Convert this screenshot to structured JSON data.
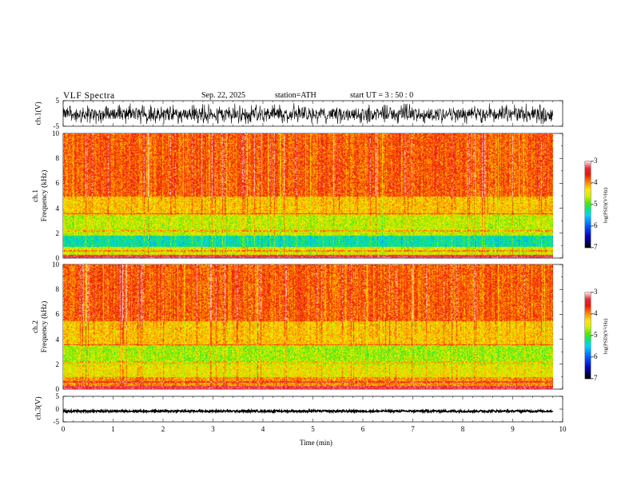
{
  "header": {
    "title": "VLF  Spectra",
    "date": "Sep. 22, 2025",
    "station": "station=ATH",
    "start": "start  UT  =    3  : 50 : 0"
  },
  "chart_data": [
    {
      "type": "line",
      "name": "ch.1 waveform",
      "ylabel": "ch.1(V)",
      "ylim": [
        -5,
        5
      ],
      "yticks": [
        "5",
        "-5"
      ],
      "xlim": [
        0,
        10
      ],
      "data_extent_min": 9.8,
      "amplitude_range": [
        -3,
        2.5
      ]
    },
    {
      "type": "heatmap",
      "name": "ch.1 spectrogram",
      "ylabel": "ch.1\nFrequency (kHz)",
      "ylim": [
        0,
        10
      ],
      "yticks": [
        "0",
        "2",
        "4",
        "6",
        "8",
        "10"
      ],
      "xlim": [
        0,
        10
      ],
      "colorbar": {
        "label": "log(PSD)(V²/Hz)",
        "range": [
          -7,
          -3
        ],
        "ticks": [
          "-3",
          "-4",
          "-5",
          "-6",
          "-7"
        ]
      },
      "bands_kHz": [
        {
          "from": 0,
          "to": 0.3,
          "level": -3.3
        },
        {
          "from": 0.3,
          "to": 0.9,
          "level": -4.5
        },
        {
          "from": 0.9,
          "to": 1.8,
          "level": -5.3
        },
        {
          "from": 1.8,
          "to": 3.5,
          "level": -4.6
        },
        {
          "from": 3.5,
          "to": 5.0,
          "level": -4.2
        },
        {
          "from": 5.0,
          "to": 10.0,
          "level": -3.8
        }
      ]
    },
    {
      "type": "heatmap",
      "name": "ch.2 spectrogram",
      "ylabel": "ch.2\nFrequency (kHz)",
      "ylim": [
        0,
        10
      ],
      "yticks": [
        "0",
        "2",
        "4",
        "6",
        "8",
        "10"
      ],
      "xlim": [
        0,
        10
      ],
      "colorbar": {
        "label": "log(PSD)(V²/Hz)",
        "range": [
          -7,
          -3
        ],
        "ticks": [
          "-3",
          "-4",
          "-5",
          "-6",
          "-7"
        ]
      },
      "bands_kHz": [
        {
          "from": 0,
          "to": 0.3,
          "level": -3.3
        },
        {
          "from": 0.3,
          "to": 1.0,
          "level": -4.0
        },
        {
          "from": 1.0,
          "to": 2.0,
          "level": -4.4
        },
        {
          "from": 2.0,
          "to": 3.5,
          "level": -4.7
        },
        {
          "from": 3.5,
          "to": 5.5,
          "level": -4.2
        },
        {
          "from": 5.5,
          "to": 10.0,
          "level": -3.8
        }
      ]
    },
    {
      "type": "line",
      "name": "ch.3 waveform",
      "ylabel": "ch.3(V)",
      "ylim": [
        -5,
        5
      ],
      "yticks": [
        "5",
        "0",
        "-5"
      ],
      "xlim": [
        0,
        10
      ],
      "data_extent_min": 9.8,
      "level_V": -0.8
    }
  ],
  "xaxis": {
    "label": "Time  (min)",
    "ticks": [
      "0",
      "1",
      "2",
      "3",
      "4",
      "5",
      "6",
      "7",
      "8",
      "9",
      "10"
    ]
  }
}
